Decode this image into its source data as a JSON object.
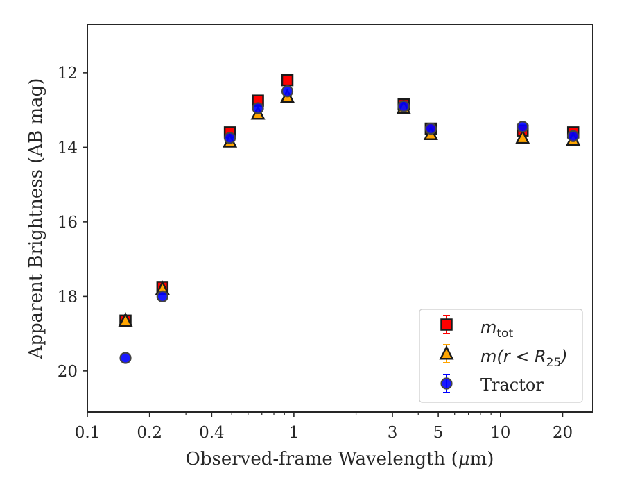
{
  "chart_data": {
    "type": "scatter",
    "xlabel_pre": "Observed-frame Wavelength (",
    "xlabel_mu": "μ",
    "xlabel_post": "m)",
    "ylabel": "Apparent Brightness (AB mag)",
    "x_scale": "log",
    "xlim": [
      0.1,
      28
    ],
    "ylim": [
      21.1,
      10.7
    ],
    "y_inverted": true,
    "grid": false,
    "legend_position": "lower-right",
    "x_tick_labels": [
      "0.1",
      "0.2",
      "0.4",
      "1",
      "3",
      "5",
      "10",
      "20"
    ],
    "x_ticks": [
      0.1,
      0.2,
      0.4,
      1,
      3,
      5,
      10,
      20
    ],
    "y_tick_labels": [
      "12",
      "14",
      "16",
      "18",
      "20"
    ],
    "y_ticks": [
      12,
      14,
      16,
      18,
      20
    ],
    "x": [
      0.153,
      0.231,
      0.49,
      0.67,
      0.93,
      3.4,
      4.6,
      12.8,
      22.5
    ],
    "series": [
      {
        "label_base": "m",
        "label_sub": "tot",
        "marker": "square",
        "color": "#ff0000",
        "values": [
          18.65,
          17.75,
          13.6,
          12.75,
          12.2,
          12.85,
          13.5,
          13.55,
          13.6
        ]
      },
      {
        "label_base": "m(r < R",
        "label_sub": "25",
        "label_end": ")",
        "marker": "triangle",
        "color": "#ffa500",
        "values": [
          18.65,
          17.8,
          13.85,
          13.1,
          12.65,
          12.95,
          13.65,
          13.75,
          13.8
        ]
      },
      {
        "label": "Tractor",
        "marker": "circle",
        "color": "#0000ff",
        "values": [
          19.65,
          18.0,
          13.75,
          12.95,
          12.5,
          12.9,
          13.5,
          13.45,
          13.7
        ]
      }
    ]
  }
}
